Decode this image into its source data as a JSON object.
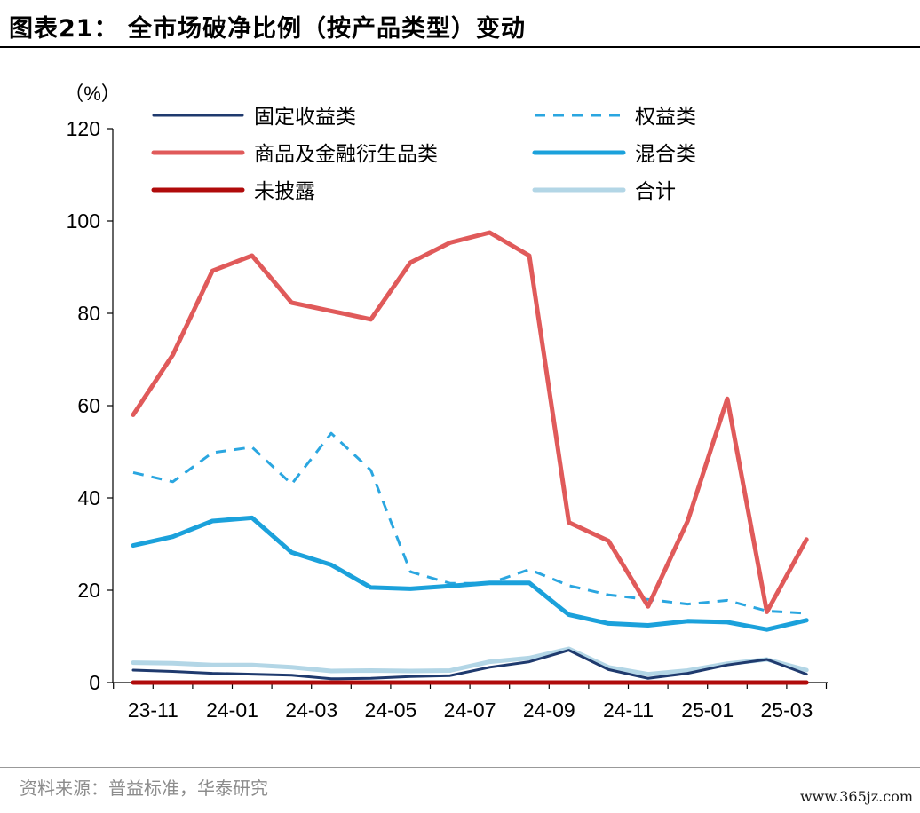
{
  "figure_title": "图表21： 全市场破净比例（按产品类型）变动",
  "source_note": "资料来源：普益标准，华泰研究",
  "watermark": "www.365jz.com",
  "chart_data": {
    "type": "line",
    "ylabel": "（%）",
    "ylim": [
      0,
      120
    ],
    "yticks": [
      0,
      20,
      40,
      60,
      80,
      100,
      120
    ],
    "x": [
      "23-11",
      "23-12",
      "24-01",
      "24-02",
      "24-03",
      "24-04",
      "24-05",
      "24-06",
      "24-07",
      "24-08",
      "24-09",
      "24-10",
      "24-11",
      "24-12",
      "25-01",
      "25-02",
      "25-03",
      "25-04"
    ],
    "xtick_labels": [
      "23-11",
      "24-01",
      "24-03",
      "24-05",
      "24-07",
      "24-09",
      "24-11",
      "25-01",
      "25-03"
    ],
    "legend_position": "top",
    "series": [
      {
        "name": "固定收益类",
        "color": "#1f3a6e",
        "dash": "solid",
        "width": 3,
        "values": [
          2.7,
          2.4,
          2.0,
          1.8,
          1.6,
          0.8,
          0.9,
          1.3,
          1.5,
          3.3,
          4.5,
          7.0,
          2.8,
          0.9,
          2.0,
          3.8,
          5.0,
          1.8
        ]
      },
      {
        "name": "权益类",
        "color": "#2aa6e0",
        "dash": "dashed",
        "width": 3,
        "values": [
          45.5,
          43.5,
          49.8,
          51.0,
          43.0,
          54.0,
          46.0,
          24.0,
          21.5,
          21.5,
          24.5,
          21.0,
          19.0,
          18.0,
          17.0,
          17.8,
          15.5,
          15.0
        ]
      },
      {
        "name": "商品及金融衍生品类",
        "color": "#e05a5a",
        "dash": "solid",
        "width": 5,
        "values": [
          58.0,
          71.0,
          89.2,
          92.5,
          82.3,
          80.5,
          78.7,
          91.0,
          95.3,
          97.5,
          92.5,
          34.7,
          30.7,
          16.5,
          35.0,
          61.5,
          15.3,
          31.0
        ]
      },
      {
        "name": "混合类",
        "color": "#1ba1db",
        "dash": "solid",
        "width": 5,
        "values": [
          29.7,
          31.6,
          35.0,
          35.7,
          28.2,
          25.5,
          20.6,
          20.3,
          20.9,
          21.6,
          21.6,
          14.7,
          12.8,
          12.4,
          13.3,
          13.1,
          11.5,
          13.5
        ]
      },
      {
        "name": "未披露",
        "color": "#b00b0b",
        "dash": "solid",
        "width": 5,
        "values": [
          0,
          0,
          0,
          0,
          0,
          0,
          0,
          0,
          0,
          0,
          0,
          0,
          0,
          0,
          0,
          0,
          0,
          0
        ]
      },
      {
        "name": "合计",
        "color": "#b3d6e6",
        "dash": "solid",
        "width": 5,
        "values": [
          4.3,
          4.2,
          3.8,
          3.8,
          3.3,
          2.5,
          2.6,
          2.5,
          2.6,
          4.5,
          5.3,
          7.3,
          3.3,
          1.8,
          2.6,
          4.1,
          5.0,
          2.7
        ]
      }
    ]
  }
}
